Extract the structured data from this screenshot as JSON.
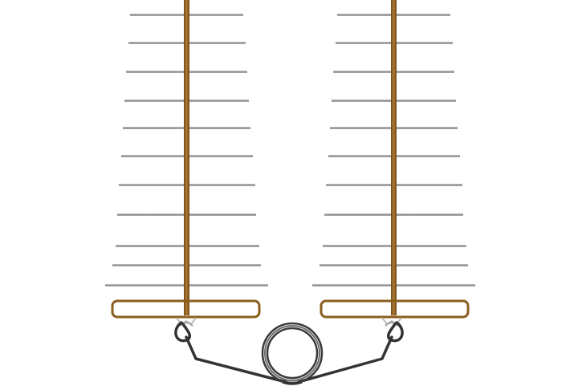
{
  "diagram": {
    "antenna_count": 2,
    "elements_per_antenna": 11,
    "colors": {
      "background": "#ffffff",
      "boom": "#8B5E1E",
      "boom_highlight": "#B07A34",
      "element": "#9a9a9a",
      "element_highlight": "#d6d6d6",
      "driven_loop": "#8B5E1E",
      "cable": "#333333",
      "coil": "#3a3a3a",
      "connector": "#bdbdbd"
    },
    "icons": [
      "yagi-antenna-icon",
      "coax-cable-icon",
      "cable-coil-icon",
      "connector-icon"
    ]
  }
}
